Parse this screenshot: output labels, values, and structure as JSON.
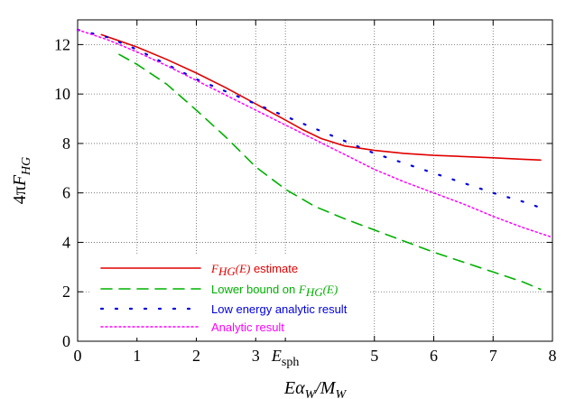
{
  "chart_data": {
    "type": "line",
    "xlabel": "Eα_W/M_W",
    "ylabel": "4πF_HG",
    "xlim": [
      0,
      8
    ],
    "ylim": [
      0,
      13
    ],
    "xticks": [
      0,
      1,
      2,
      3,
      5,
      6,
      7,
      8
    ],
    "xtick_labels": [
      "0",
      "1",
      "2",
      "3",
      "5",
      "6",
      "7",
      "8"
    ],
    "special_tick": {
      "x": 3.5,
      "label": "E_sph"
    },
    "yticks": [
      0,
      2,
      4,
      6,
      8,
      10,
      12
    ],
    "ytick_labels": [
      "0",
      "2",
      "4",
      "6",
      "8",
      "10",
      "12"
    ],
    "grid": true,
    "legend_position": "bottom-left",
    "series": [
      {
        "name": "F_HG(E) estimate",
        "legend_label": "F_HG(E) estimate",
        "color": "#e00000",
        "style": "solid",
        "x": [
          0.4,
          1.0,
          1.5,
          2.0,
          2.5,
          3.0,
          3.5,
          3.8,
          4.1,
          4.5,
          5.0,
          5.5,
          6.0,
          6.5,
          7.0,
          7.5,
          7.8
        ],
        "y": [
          12.4,
          11.9,
          11.4,
          10.85,
          10.25,
          9.6,
          8.95,
          8.55,
          8.2,
          7.9,
          7.72,
          7.6,
          7.52,
          7.47,
          7.42,
          7.36,
          7.33
        ]
      },
      {
        "name": "Lower bound on F_HG(E)",
        "legend_label": "Lower bound on F_HG(E)",
        "color": "#00b000",
        "style": "dashed",
        "x": [
          0.7,
          1.0,
          1.5,
          2.0,
          2.5,
          3.0,
          3.5,
          4.0,
          4.5,
          5.0,
          5.5,
          6.0,
          6.5,
          7.0,
          7.5,
          7.8
        ],
        "y": [
          11.6,
          11.2,
          10.4,
          9.35,
          8.25,
          7.05,
          6.15,
          5.45,
          4.95,
          4.5,
          4.05,
          3.6,
          3.2,
          2.8,
          2.4,
          2.1
        ]
      },
      {
        "name": "Low energy analytic result",
        "legend_label": "Low energy analytic result",
        "color": "#0000e0",
        "style": "dotted",
        "x": [
          0.0,
          0.5,
          1.0,
          1.5,
          2.0,
          2.5,
          3.0,
          3.5,
          4.0,
          4.5,
          5.0,
          5.5,
          6.0,
          6.5,
          7.0,
          7.5,
          7.8
        ],
        "y": [
          12.6,
          12.3,
          11.8,
          11.2,
          10.6,
          10.1,
          9.6,
          9.1,
          8.6,
          8.1,
          7.6,
          7.2,
          6.8,
          6.4,
          6.0,
          5.65,
          5.4
        ]
      },
      {
        "name": "Analytic result",
        "legend_label": "Analytic result",
        "color": "#ff00ff",
        "style": "dotted",
        "x": [
          0.0,
          0.5,
          1.0,
          1.5,
          2.0,
          2.5,
          3.0,
          3.5,
          4.0,
          4.5,
          5.0,
          5.5,
          6.0,
          6.5,
          7.0,
          7.5,
          8.0
        ],
        "y": [
          12.6,
          12.2,
          11.7,
          11.15,
          10.55,
          9.95,
          9.35,
          8.75,
          8.15,
          7.55,
          6.95,
          6.45,
          6.0,
          5.55,
          5.05,
          4.6,
          4.2
        ]
      }
    ]
  }
}
